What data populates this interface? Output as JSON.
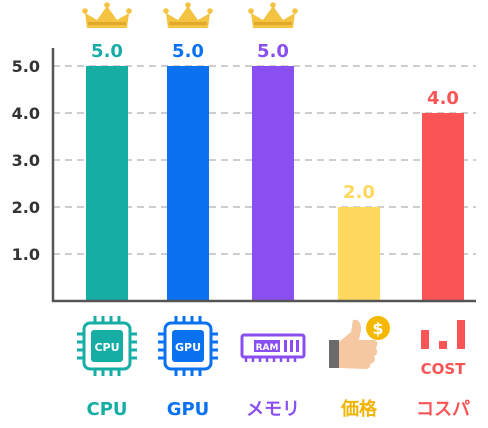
{
  "chart_data": {
    "type": "bar",
    "categories": [
      "CPU",
      "GPU",
      "メモリ",
      "価格",
      "コスパ"
    ],
    "values": [
      5.0,
      5.0,
      5.0,
      2.0,
      4.0
    ],
    "value_labels": [
      "5.0",
      "5.0",
      "5.0",
      "2.0",
      "4.0"
    ],
    "y_ticks": [
      "1.0",
      "2.0",
      "3.0",
      "4.0",
      "5.0"
    ],
    "ylim": [
      0,
      5.5
    ],
    "grid": true,
    "colors": [
      "#16ada5",
      "#0a72f0",
      "#8a4ff0",
      "#ffd85e",
      "#fa5556"
    ],
    "crown_color": "#f5c342",
    "crowned": [
      true,
      true,
      true,
      false,
      false
    ]
  },
  "icons": [
    {
      "name": "cpu-icon",
      "text": "CPU"
    },
    {
      "name": "gpu-icon",
      "text": "GPU"
    },
    {
      "name": "ram-icon",
      "text": "RAM"
    },
    {
      "name": "price-thumbs-up-icon",
      "text": "$"
    },
    {
      "name": "cost-bar-icon",
      "text": "COST"
    }
  ]
}
